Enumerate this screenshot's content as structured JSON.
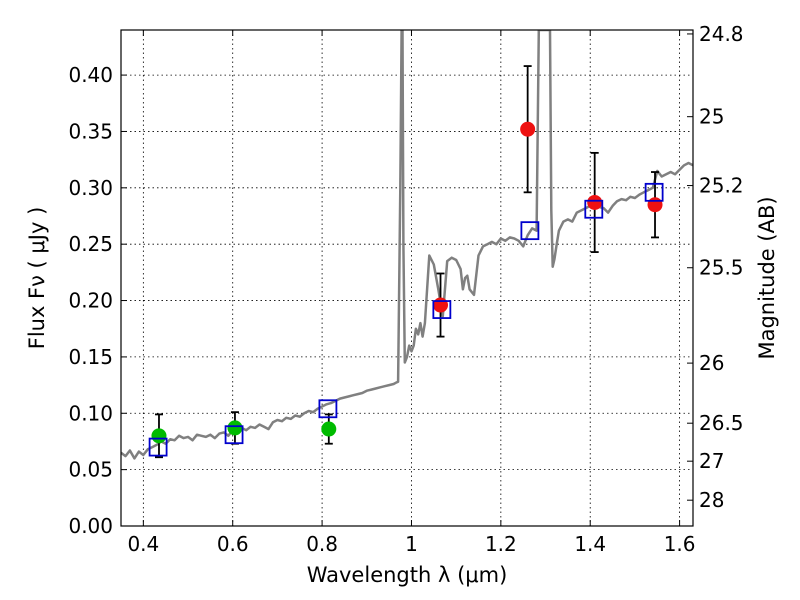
{
  "chart_data": {
    "type": "scatter",
    "title": "",
    "xlabel": "Wavelength  λ (μm)",
    "ylabel": "Flux  Fν  ( μJy )",
    "y2label": "Magnitude (AB)",
    "xlim": [
      0.35,
      1.63
    ],
    "ylim": [
      0.0,
      0.44
    ],
    "grid": true,
    "x_ticks": [
      0.4,
      0.6,
      0.8,
      1.0,
      1.2,
      1.4,
      1.6
    ],
    "x_tick_labels": [
      "0.4",
      "0.6",
      "0.8",
      "1",
      "1.2",
      "1.4",
      "1.6"
    ],
    "y_ticks": [
      0.0,
      0.05,
      0.1,
      0.15,
      0.2,
      0.25,
      0.3,
      0.35,
      0.4
    ],
    "y_tick_labels": [
      "0.00",
      "0.05",
      "0.10",
      "0.15",
      "0.20",
      "0.25",
      "0.30",
      "0.35",
      "0.40"
    ],
    "y2_ticks": [
      {
        "label": "24.8",
        "flux": 0.4365
      },
      {
        "label": "25",
        "flux": 0.3631
      },
      {
        "label": "25.2",
        "flux": 0.302
      },
      {
        "label": "25.5",
        "flux": 0.2291
      },
      {
        "label": "26",
        "flux": 0.1445
      },
      {
        "label": "26.5",
        "flux": 0.0912
      },
      {
        "label": "27",
        "flux": 0.0575
      },
      {
        "label": "28",
        "flux": 0.0229
      }
    ],
    "colors": {
      "model": "#808080",
      "green_points": "#00bb00",
      "red_points": "#ee1111",
      "model_boxes": "#0000cc",
      "errorbars": "#000000"
    },
    "series": [
      {
        "kind": "line",
        "x": [
          0.35,
          0.36,
          0.37,
          0.38,
          0.39,
          0.4,
          0.41,
          0.42,
          0.43,
          0.44,
          0.45,
          0.46,
          0.47,
          0.48,
          0.49,
          0.5,
          0.51,
          0.52,
          0.53,
          0.54,
          0.55,
          0.56,
          0.57,
          0.58,
          0.59,
          0.6,
          0.61,
          0.62,
          0.63,
          0.64,
          0.65,
          0.66,
          0.67,
          0.68,
          0.69,
          0.7,
          0.71,
          0.72,
          0.73,
          0.74,
          0.75,
          0.76,
          0.77,
          0.78,
          0.79,
          0.8,
          0.81,
          0.82,
          0.83,
          0.84,
          0.85,
          0.86,
          0.87,
          0.88,
          0.89,
          0.9,
          0.91,
          0.92,
          0.93,
          0.94,
          0.95,
          0.96,
          0.965,
          0.97,
          0.975,
          0.978,
          0.98,
          0.982,
          0.985,
          0.99,
          0.995,
          1.0,
          1.005,
          1.01,
          1.015,
          1.02,
          1.025,
          1.03,
          1.04,
          1.05,
          1.06,
          1.07,
          1.08,
          1.09,
          1.1,
          1.11,
          1.115,
          1.12,
          1.125,
          1.13,
          1.14,
          1.15,
          1.16,
          1.17,
          1.18,
          1.19,
          1.2,
          1.21,
          1.22,
          1.23,
          1.24,
          1.25,
          1.26,
          1.27,
          1.275,
          1.28,
          1.285,
          1.29,
          1.3,
          1.31,
          1.313,
          1.316,
          1.32,
          1.325,
          1.33,
          1.34,
          1.35,
          1.36,
          1.37,
          1.38,
          1.39,
          1.4,
          1.41,
          1.42,
          1.43,
          1.44,
          1.45,
          1.46,
          1.47,
          1.48,
          1.49,
          1.5,
          1.51,
          1.52,
          1.53,
          1.54,
          1.55,
          1.56,
          1.57,
          1.58,
          1.59,
          1.6,
          1.61,
          1.62,
          1.63
        ],
        "y": [
          0.065,
          0.062,
          0.067,
          0.06,
          0.066,
          0.063,
          0.068,
          0.07,
          0.072,
          0.075,
          0.073,
          0.077,
          0.076,
          0.08,
          0.078,
          0.079,
          0.076,
          0.081,
          0.08,
          0.079,
          0.081,
          0.078,
          0.082,
          0.083,
          0.08,
          0.085,
          0.084,
          0.087,
          0.085,
          0.088,
          0.087,
          0.09,
          0.088,
          0.086,
          0.092,
          0.094,
          0.093,
          0.096,
          0.095,
          0.098,
          0.097,
          0.1,
          0.102,
          0.101,
          0.104,
          0.106,
          0.108,
          0.109,
          0.111,
          0.113,
          0.114,
          0.115,
          0.116,
          0.117,
          0.118,
          0.12,
          0.121,
          0.122,
          0.123,
          0.124,
          0.125,
          0.126,
          0.127,
          0.128,
          0.3,
          0.44,
          0.44,
          0.25,
          0.145,
          0.15,
          0.16,
          0.155,
          0.16,
          0.175,
          0.17,
          0.18,
          0.168,
          0.18,
          0.24,
          0.232,
          0.21,
          0.186,
          0.235,
          0.238,
          0.236,
          0.228,
          0.21,
          0.22,
          0.222,
          0.21,
          0.205,
          0.24,
          0.248,
          0.25,
          0.252,
          0.25,
          0.255,
          0.253,
          0.256,
          0.255,
          0.253,
          0.248,
          0.258,
          0.264,
          0.263,
          0.262,
          0.44,
          0.44,
          0.44,
          0.44,
          0.28,
          0.23,
          0.237,
          0.25,
          0.262,
          0.27,
          0.272,
          0.27,
          0.278,
          0.28,
          0.282,
          0.284,
          0.286,
          0.283,
          0.282,
          0.278,
          0.284,
          0.288,
          0.29,
          0.289,
          0.292,
          0.291,
          0.294,
          0.296,
          0.298,
          0.3,
          0.315,
          0.31,
          0.312,
          0.314,
          0.312,
          0.316,
          0.32,
          0.322,
          0.32
        ]
      },
      {
        "kind": "points",
        "color_key": "green_points",
        "points": [
          {
            "x": 0.435,
            "y": 0.08,
            "err": 0.019
          },
          {
            "x": 0.605,
            "y": 0.087,
            "err": 0.014
          },
          {
            "x": 0.815,
            "y": 0.086,
            "err": 0.013
          }
        ]
      },
      {
        "kind": "points",
        "color_key": "red_points",
        "points": [
          {
            "x": 1.065,
            "y": 0.196,
            "err": 0.028
          },
          {
            "x": 1.26,
            "y": 0.352,
            "err": 0.056
          },
          {
            "x": 1.41,
            "y": 0.287,
            "err": 0.044
          },
          {
            "x": 1.545,
            "y": 0.285,
            "err": 0.029
          }
        ]
      },
      {
        "kind": "boxes",
        "color_key": "model_boxes",
        "points": [
          {
            "x": 0.433,
            "y": 0.07
          },
          {
            "x": 0.603,
            "y": 0.081
          },
          {
            "x": 0.813,
            "y": 0.104
          },
          {
            "x": 1.068,
            "y": 0.192
          },
          {
            "x": 1.265,
            "y": 0.262
          },
          {
            "x": 1.408,
            "y": 0.281
          },
          {
            "x": 1.543,
            "y": 0.296
          }
        ]
      }
    ]
  }
}
